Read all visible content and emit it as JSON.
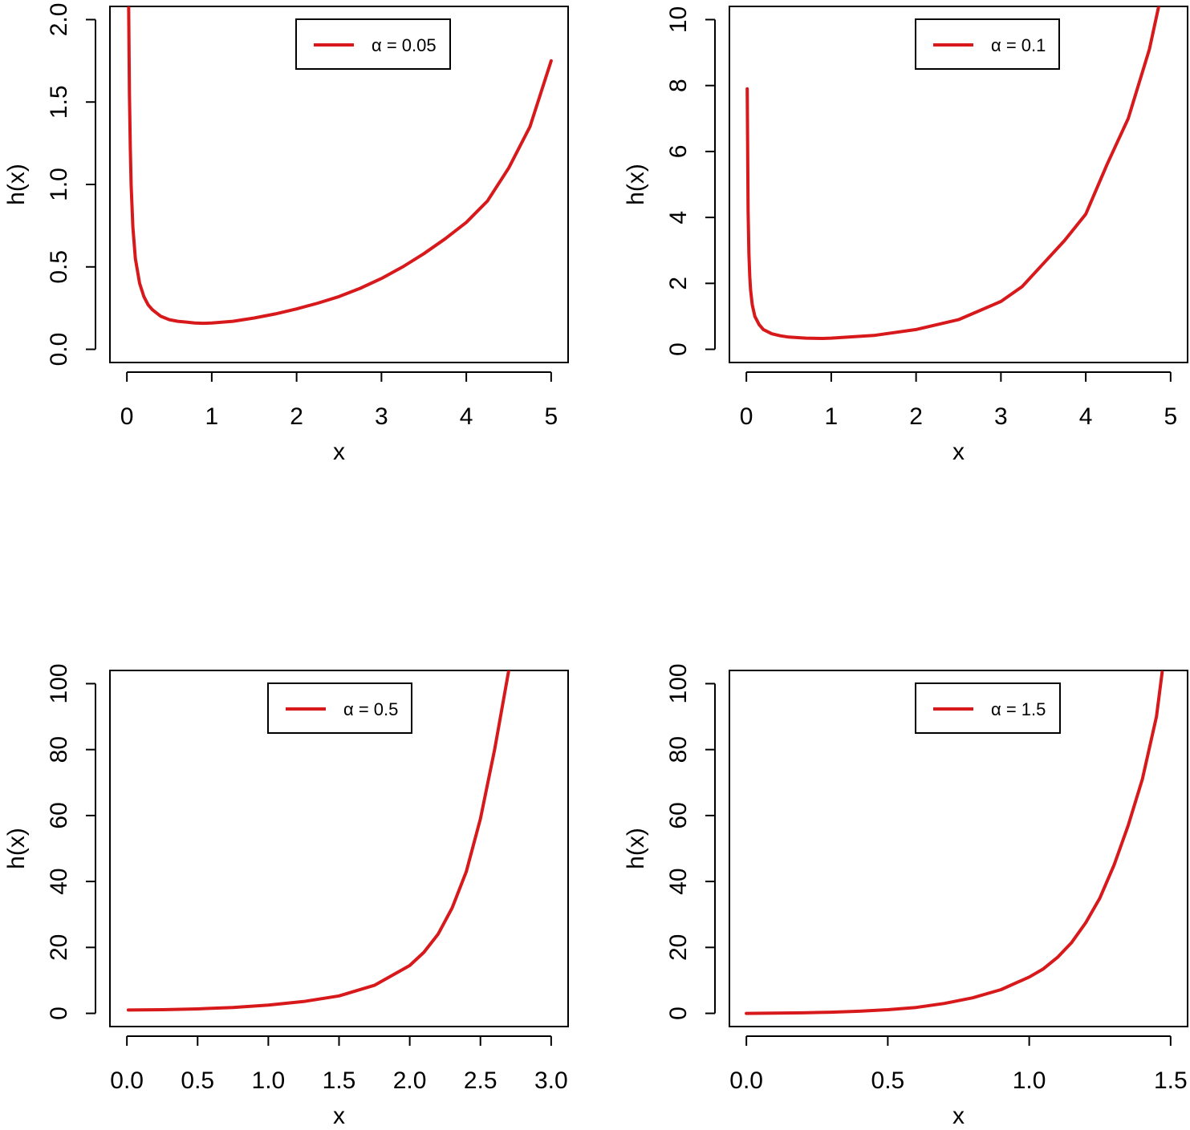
{
  "colors": {
    "curve": "#d7191c",
    "axis": "#000000",
    "background": "#ffffff"
  },
  "chart_data": [
    {
      "type": "line",
      "id": "p1",
      "xlabel": "x",
      "ylabel": "h(x)",
      "xlim": [
        -0.2,
        5.2
      ],
      "ylim": [
        -0.08,
        2.08
      ],
      "xticks": [
        0,
        1,
        2,
        3,
        4,
        5
      ],
      "xtick_labels": [
        "0",
        "1",
        "2",
        "3",
        "4",
        "5"
      ],
      "yticks": [
        0,
        0.5,
        1,
        1.5,
        2
      ],
      "ytick_labels": [
        "0.0",
        "0.5",
        "1.0",
        "1.5",
        "2.0"
      ],
      "legend": {
        "symbol": "α",
        "text": "= 0.05",
        "placement": "top-center"
      },
      "series": [
        {
          "name": "α = 0.05",
          "x": [
            0.02,
            0.03,
            0.04,
            0.05,
            0.07,
            0.1,
            0.15,
            0.2,
            0.25,
            0.3,
            0.4,
            0.5,
            0.6,
            0.7,
            0.8,
            0.9,
            1.0,
            1.25,
            1.5,
            1.75,
            2.0,
            2.25,
            2.5,
            2.75,
            3.0,
            3.25,
            3.5,
            3.75,
            4.0,
            4.25,
            4.5,
            4.75,
            5.0
          ],
          "y": [
            2.1,
            1.55,
            1.22,
            1.0,
            0.74,
            0.55,
            0.4,
            0.32,
            0.27,
            0.24,
            0.2,
            0.18,
            0.17,
            0.165,
            0.16,
            0.158,
            0.16,
            0.17,
            0.19,
            0.215,
            0.245,
            0.28,
            0.32,
            0.37,
            0.43,
            0.5,
            0.58,
            0.67,
            0.77,
            0.9,
            1.1,
            1.35,
            1.75
          ]
        }
      ]
    },
    {
      "type": "line",
      "id": "p2",
      "xlabel": "x",
      "ylabel": "h(x)",
      "xlim": [
        -0.2,
        5.2
      ],
      "ylim": [
        -0.4,
        10.4
      ],
      "xticks": [
        0,
        1,
        2,
        3,
        4,
        5
      ],
      "xtick_labels": [
        "0",
        "1",
        "2",
        "3",
        "4",
        "5"
      ],
      "yticks": [
        0,
        2,
        4,
        6,
        8,
        10
      ],
      "ytick_labels": [
        "0",
        "2",
        "4",
        "6",
        "8",
        "10"
      ],
      "legend": {
        "symbol": "α",
        "text": "= 0.1",
        "placement": "top-right"
      },
      "series": [
        {
          "name": "α = 0.1",
          "x": [
            0.01,
            0.02,
            0.03,
            0.04,
            0.05,
            0.07,
            0.1,
            0.15,
            0.2,
            0.3,
            0.4,
            0.5,
            0.7,
            0.9,
            1.0,
            1.5,
            2.0,
            2.5,
            3.0,
            3.25,
            3.5,
            3.75,
            4.0,
            4.25,
            4.5,
            4.75,
            4.86
          ],
          "y": [
            7.9,
            4.2,
            2.9,
            2.2,
            1.8,
            1.35,
            1.0,
            0.75,
            0.6,
            0.47,
            0.41,
            0.37,
            0.34,
            0.33,
            0.34,
            0.42,
            0.6,
            0.9,
            1.45,
            1.9,
            2.6,
            3.3,
            4.1,
            5.6,
            7.0,
            9.1,
            10.4
          ]
        }
      ]
    },
    {
      "type": "line",
      "id": "p3",
      "xlabel": "x",
      "ylabel": "h(x)",
      "xlim": [
        -0.12,
        3.12
      ],
      "ylim": [
        -4,
        104
      ],
      "xticks": [
        0,
        0.5,
        1,
        1.5,
        2,
        2.5,
        3
      ],
      "xtick_labels": [
        "0.0",
        "0.5",
        "1.0",
        "1.5",
        "2.0",
        "2.5",
        "3.0"
      ],
      "yticks": [
        0,
        20,
        40,
        60,
        80,
        100
      ],
      "ytick_labels": [
        "0",
        "20",
        "40",
        "60",
        "80",
        "100"
      ],
      "legend": {
        "symbol": "α",
        "text": "= 0.5",
        "placement": "top-center"
      },
      "series": [
        {
          "name": "α = 0.5",
          "x": [
            0.01,
            0.25,
            0.5,
            0.75,
            1.0,
            1.25,
            1.5,
            1.75,
            2.0,
            2.1,
            2.2,
            2.3,
            2.4,
            2.5,
            2.6,
            2.7
          ],
          "y": [
            1.0,
            1.1,
            1.35,
            1.8,
            2.5,
            3.6,
            5.3,
            8.5,
            14.5,
            18.5,
            24.0,
            32.0,
            43.0,
            59.0,
            80.0,
            104.0
          ]
        }
      ]
    },
    {
      "type": "line",
      "id": "p4",
      "xlabel": "x",
      "ylabel": "h(x)",
      "xlim": [
        -0.06,
        1.56
      ],
      "ylim": [
        -4,
        104
      ],
      "xticks": [
        0,
        0.5,
        1,
        1.5
      ],
      "xtick_labels": [
        "0.0",
        "0.5",
        "1.0",
        "1.5"
      ],
      "yticks": [
        0,
        20,
        40,
        60,
        80,
        100
      ],
      "ytick_labels": [
        "0",
        "20",
        "40",
        "60",
        "80",
        "100"
      ],
      "legend": {
        "symbol": "α",
        "text": "= 1.5",
        "placement": "top-right"
      },
      "series": [
        {
          "name": "α = 1.5",
          "x": [
            0.0,
            0.1,
            0.2,
            0.3,
            0.4,
            0.5,
            0.6,
            0.7,
            0.8,
            0.9,
            1.0,
            1.05,
            1.1,
            1.15,
            1.2,
            1.25,
            1.3,
            1.35,
            1.4,
            1.45,
            1.47
          ],
          "y": [
            0.0,
            0.05,
            0.15,
            0.35,
            0.65,
            1.1,
            1.8,
            3.0,
            4.7,
            7.2,
            11.0,
            13.5,
            17.0,
            21.5,
            27.5,
            35.0,
            45.0,
            57.0,
            71.0,
            90.0,
            103.5
          ]
        }
      ]
    }
  ]
}
